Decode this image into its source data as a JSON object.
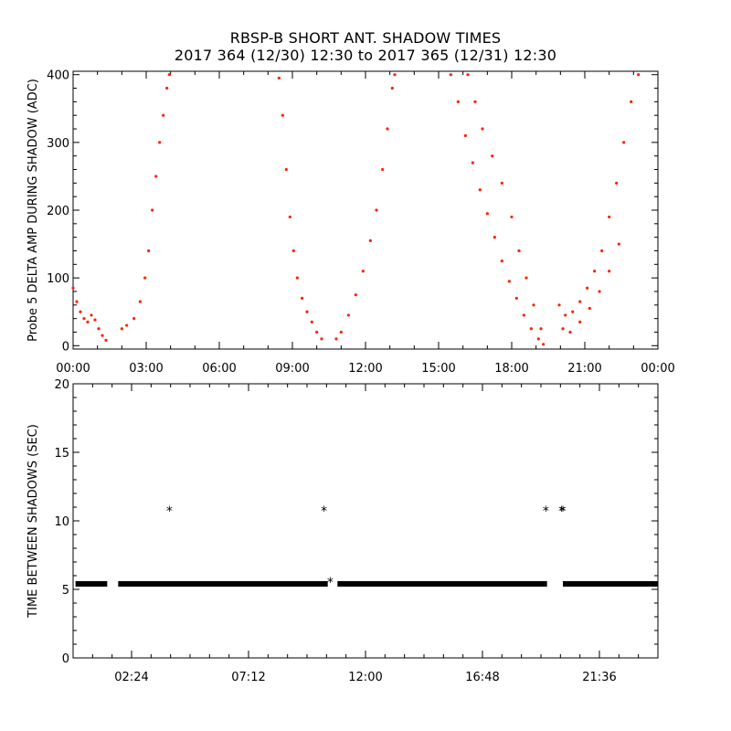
{
  "title_line1": "RBSP-B SHORT ANT. SHADOW TIMES",
  "title_line2": "2017 364 (12/30) 12:30 to 2017 365 (12/31) 12:30",
  "colors": {
    "upper_series": "#ff2200",
    "lower_series": "#000000",
    "axes": "#000000"
  },
  "chart_data": [
    {
      "type": "scatter",
      "ylabel": "Probe 5 DELTA AMP DURING SHADOW (ADC)",
      "xlabel": "",
      "xlim": [
        0,
        24
      ],
      "ylim": [
        -5,
        405
      ],
      "x_unit": "hours of day",
      "x_tick_labels": [
        "00:00",
        "03:00",
        "06:00",
        "09:00",
        "12:00",
        "15:00",
        "18:00",
        "21:00",
        "00:00"
      ],
      "x_ticks": [
        0,
        3,
        6,
        9,
        12,
        15,
        18,
        21,
        24
      ],
      "y_ticks": [
        0,
        100,
        200,
        300,
        400
      ],
      "y_tick_labels": [
        "0",
        "100",
        "200",
        "300",
        "400"
      ],
      "series": [
        {
          "color": "#ff2200",
          "points": [
            [
              0.0,
              85
            ],
            [
              0.15,
              65
            ],
            [
              0.3,
              50
            ],
            [
              0.45,
              40
            ],
            [
              0.6,
              35
            ],
            [
              0.75,
              45
            ],
            [
              0.9,
              38
            ],
            [
              1.05,
              25
            ],
            [
              1.2,
              15
            ],
            [
              1.35,
              8
            ],
            [
              2.0,
              25
            ],
            [
              2.2,
              30
            ],
            [
              2.5,
              40
            ],
            [
              2.75,
              65
            ],
            [
              2.95,
              100
            ],
            [
              3.1,
              140
            ],
            [
              3.25,
              200
            ],
            [
              3.4,
              250
            ],
            [
              3.55,
              300
            ],
            [
              3.7,
              340
            ],
            [
              3.85,
              380
            ],
            [
              3.95,
              400
            ],
            [
              8.45,
              395
            ],
            [
              8.6,
              340
            ],
            [
              8.75,
              260
            ],
            [
              8.9,
              190
            ],
            [
              9.05,
              140
            ],
            [
              9.2,
              100
            ],
            [
              9.4,
              70
            ],
            [
              9.6,
              50
            ],
            [
              9.8,
              35
            ],
            [
              10.0,
              20
            ],
            [
              10.2,
              10
            ],
            [
              10.8,
              10
            ],
            [
              11.0,
              20
            ],
            [
              11.3,
              45
            ],
            [
              11.6,
              75
            ],
            [
              11.9,
              110
            ],
            [
              12.2,
              155
            ],
            [
              12.45,
              200
            ],
            [
              12.7,
              260
            ],
            [
              12.9,
              320
            ],
            [
              13.1,
              380
            ],
            [
              13.2,
              400
            ],
            [
              15.5,
              400
            ],
            [
              15.8,
              360
            ],
            [
              16.1,
              310
            ],
            [
              16.4,
              270
            ],
            [
              16.7,
              230
            ],
            [
              17.0,
              195
            ],
            [
              17.3,
              160
            ],
            [
              17.6,
              125
            ],
            [
              17.9,
              95
            ],
            [
              18.2,
              70
            ],
            [
              18.5,
              45
            ],
            [
              18.8,
              25
            ],
            [
              19.1,
              10
            ],
            [
              19.3,
              2
            ],
            [
              16.2,
              400
            ],
            [
              16.5,
              360
            ],
            [
              16.8,
              320
            ],
            [
              17.2,
              280
            ],
            [
              17.6,
              240
            ],
            [
              18.0,
              190
            ],
            [
              18.3,
              140
            ],
            [
              18.6,
              100
            ],
            [
              18.9,
              60
            ],
            [
              19.2,
              25
            ],
            [
              19.95,
              60
            ],
            [
              20.2,
              45
            ],
            [
              20.5,
              50
            ],
            [
              20.8,
              65
            ],
            [
              21.1,
              85
            ],
            [
              21.4,
              110
            ],
            [
              21.7,
              140
            ],
            [
              22.0,
              190
            ],
            [
              22.3,
              240
            ],
            [
              22.6,
              300
            ],
            [
              22.9,
              360
            ],
            [
              23.2,
              400
            ],
            [
              20.1,
              25
            ],
            [
              20.4,
              20
            ],
            [
              20.8,
              35
            ],
            [
              21.2,
              55
            ],
            [
              21.6,
              80
            ],
            [
              22.0,
              110
            ],
            [
              22.4,
              150
            ]
          ]
        }
      ]
    },
    {
      "type": "scatter",
      "ylabel": "TIME BETWEEN SHADOWS (SEC)",
      "xlabel": "",
      "xlim": [
        0,
        24
      ],
      "ylim": [
        0,
        20
      ],
      "x_unit": "hours of day",
      "x_tick_labels": [
        "02:24",
        "07:12",
        "12:00",
        "16:48",
        "21:36"
      ],
      "x_ticks": [
        2.4,
        7.2,
        12.0,
        16.8,
        21.6
      ],
      "y_ticks": [
        0,
        5,
        10,
        15,
        20
      ],
      "y_tick_labels": [
        "0",
        "5",
        "10",
        "15",
        "20"
      ],
      "baseline_value": 5.4,
      "baseline_segments": [
        [
          0.1,
          1.4
        ],
        [
          1.85,
          10.45
        ],
        [
          10.85,
          19.45
        ],
        [
          20.1,
          24.0
        ]
      ],
      "series": [
        {
          "color": "#000000",
          "points": [
            [
              3.95,
              10.8
            ],
            [
              10.3,
              10.8
            ],
            [
              10.55,
              5.6
            ],
            [
              19.4,
              10.8
            ],
            [
              20.05,
              10.8
            ],
            [
              20.1,
              10.8
            ]
          ]
        }
      ]
    }
  ]
}
